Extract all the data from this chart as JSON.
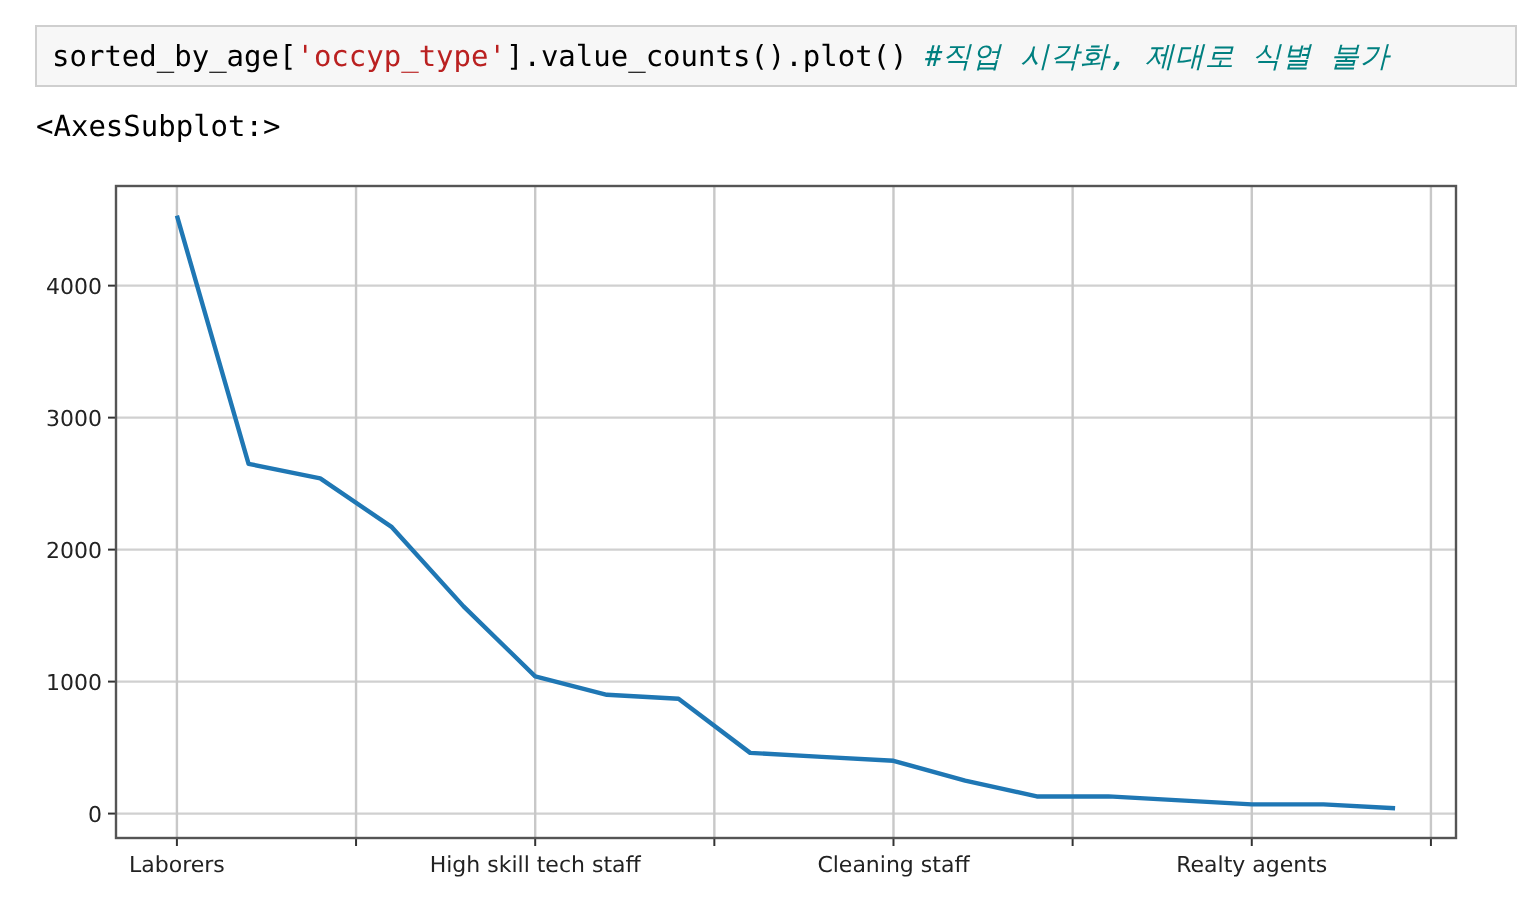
{
  "chart_data": {
    "type": "line",
    "annotations": [
      "sorted_by_age[",
      "'occyp_type'",
      "].value_counts().plot()",
      "#직업 시각화, 제대로 식별 불가",
      "<AxesSubplot:>"
    ],
    "categories": [
      "Laborers",
      null,
      null,
      null,
      null,
      "High skill tech staff",
      null,
      null,
      null,
      null,
      "Cleaning staff",
      null,
      null,
      null,
      null,
      "Realty agents",
      null,
      null
    ],
    "values": [
      4530,
      2650,
      2540,
      2170,
      1570,
      1040,
      900,
      870,
      460,
      430,
      400,
      250,
      130,
      130,
      100,
      70,
      70,
      40
    ],
    "color": "#1f77b4",
    "ylim": [
      -185,
      4755
    ],
    "yticks": [
      0,
      1000,
      2000,
      3000,
      4000
    ],
    "grid": true
  }
}
